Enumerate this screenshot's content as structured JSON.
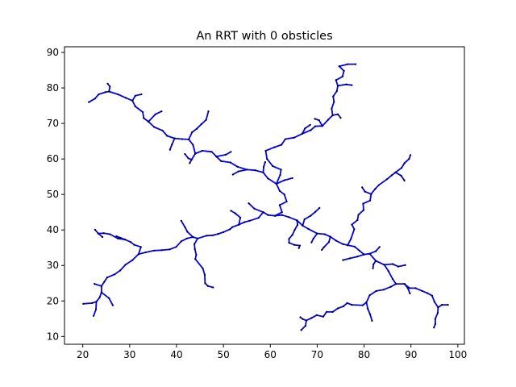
{
  "chart_data": {
    "type": "line",
    "title": "An RRT with 0 obsticles",
    "xlabel": "",
    "ylabel": "",
    "xlim": [
      16.1,
      101.4
    ],
    "ylim": [
      7.8,
      91.6
    ],
    "x_ticks": [
      20,
      30,
      40,
      50,
      60,
      70,
      80,
      90,
      100
    ],
    "y_ticks": [
      10,
      20,
      30,
      40,
      50,
      60,
      70,
      80,
      90
    ],
    "grid": false,
    "legend": "none",
    "edge_color": "#0000ff",
    "node_color": "#000000",
    "branches": [
      [
        [
          61,
          44
        ],
        [
          62.5,
          45
        ],
        [
          62,
          47
        ],
        [
          63.5,
          48
        ],
        [
          63,
          50
        ],
        [
          62,
          51
        ],
        [
          61.3,
          53
        ]
      ],
      [
        [
          61.3,
          53
        ],
        [
          63,
          54
        ],
        [
          64.7,
          54.6
        ]
      ],
      [
        [
          61.3,
          53
        ],
        [
          59.5,
          54.5
        ],
        [
          58.5,
          56.2
        ],
        [
          56.8,
          56.8
        ],
        [
          55,
          57
        ],
        [
          53,
          57.8
        ],
        [
          51.5,
          59
        ],
        [
          49.5,
          59.4
        ],
        [
          48.5,
          60.7
        ]
      ],
      [
        [
          48.5,
          60.7
        ],
        [
          50.5,
          61.2
        ],
        [
          51.6,
          62
        ]
      ],
      [
        [
          48.5,
          60.7
        ],
        [
          47.5,
          62
        ],
        [
          45.5,
          62.3
        ],
        [
          44,
          61.5
        ],
        [
          43.2,
          59.8
        ],
        [
          42.8,
          58.8
        ]
      ],
      [
        [
          44,
          61.5
        ],
        [
          43.5,
          64
        ],
        [
          42.6,
          65.5
        ],
        [
          41.2,
          65.6
        ],
        [
          39.6,
          65.8
        ],
        [
          38,
          66.5
        ],
        [
          37,
          68
        ],
        [
          35.2,
          69
        ],
        [
          34,
          70.5
        ],
        [
          33,
          71.5
        ],
        [
          32.8,
          73.2
        ],
        [
          31.2,
          74.8
        ],
        [
          30.6,
          76.4
        ],
        [
          29.2,
          77.2
        ],
        [
          27.5,
          78.2
        ],
        [
          25.6,
          79
        ],
        [
          24.8,
          78.8
        ],
        [
          23.4,
          78.2
        ],
        [
          22.6,
          77
        ],
        [
          21.3,
          76
        ]
      ],
      [
        [
          43.2,
          59.8
        ],
        [
          42.5,
          60.2
        ],
        [
          41.8,
          61.4
        ]
      ],
      [
        [
          42.6,
          65.5
        ],
        [
          43.3,
          67.5
        ],
        [
          44.3,
          68.5
        ],
        [
          45.3,
          69.8
        ],
        [
          46.3,
          71
        ],
        [
          46.8,
          73.4
        ]
      ],
      [
        [
          39.6,
          65.8
        ],
        [
          39,
          64
        ],
        [
          38.6,
          62.6
        ]
      ],
      [
        [
          34,
          70.5
        ],
        [
          35.5,
          72.6
        ],
        [
          36.8,
          73.4
        ]
      ],
      [
        [
          25.6,
          79
        ],
        [
          25.8,
          80.4
        ],
        [
          25.3,
          81.2
        ]
      ],
      [
        [
          30.6,
          76.4
        ],
        [
          31.2,
          77.8
        ],
        [
          32.5,
          78.2
        ]
      ],
      [
        [
          58.5,
          56.2
        ],
        [
          58.6,
          57.8
        ],
        [
          58.9,
          59.1
        ]
      ],
      [
        [
          55,
          57
        ],
        [
          53.2,
          56.5
        ],
        [
          52,
          55.6
        ]
      ],
      [
        [
          61.3,
          53
        ],
        [
          62.1,
          55.5
        ],
        [
          62.3,
          57
        ],
        [
          60.5,
          58
        ],
        [
          59.3,
          60
        ],
        [
          59,
          62.3
        ],
        [
          60.9,
          63.3
        ],
        [
          62.4,
          64
        ],
        [
          63.2,
          65.6
        ],
        [
          65.1,
          66
        ],
        [
          66.8,
          67.1
        ],
        [
          68.6,
          68.1
        ],
        [
          69.6,
          69.2
        ],
        [
          71.1,
          69.3
        ],
        [
          72.3,
          71
        ],
        [
          73.3,
          72.3
        ],
        [
          73.1,
          74.2
        ],
        [
          73.6,
          76.1
        ],
        [
          73.4,
          77.6
        ],
        [
          74.2,
          79.1
        ],
        [
          74.4,
          80.6
        ],
        [
          74,
          82.2
        ],
        [
          75.4,
          83.2
        ],
        [
          75.7,
          84.8
        ],
        [
          74.7,
          86.1
        ],
        [
          76.5,
          86.7
        ],
        [
          78.2,
          86.7
        ]
      ],
      [
        [
          74.4,
          80.6
        ],
        [
          76.2,
          81
        ],
        [
          77.4,
          80.8
        ]
      ],
      [
        [
          71.1,
          69.3
        ],
        [
          70.4,
          70.9
        ],
        [
          69.5,
          71.3
        ]
      ],
      [
        [
          66.8,
          67.1
        ],
        [
          67.4,
          68.6
        ],
        [
          68.5,
          69.6
        ]
      ],
      [
        [
          73.3,
          72.3
        ],
        [
          74.4,
          72.6
        ],
        [
          75,
          71.6
        ]
      ],
      [
        [
          61,
          44
        ],
        [
          59.5,
          44.2
        ],
        [
          58.5,
          45
        ],
        [
          57.5,
          43.4
        ],
        [
          55.6,
          42.6
        ],
        [
          54.5,
          42.2
        ],
        [
          53.3,
          41.5
        ],
        [
          51.9,
          40.8
        ],
        [
          51.4,
          40.2
        ],
        [
          50,
          39.4
        ],
        [
          48.9,
          38.9
        ],
        [
          47.8,
          38.5
        ],
        [
          46.4,
          38.4
        ],
        [
          44.5,
          37.6
        ],
        [
          43.5,
          38
        ],
        [
          42.2,
          37.6
        ],
        [
          41,
          36.8
        ],
        [
          39.9,
          35.2
        ],
        [
          38.5,
          34.5
        ],
        [
          36.8,
          34.3
        ],
        [
          35.2,
          34.2
        ],
        [
          33.4,
          33.7
        ],
        [
          31.9,
          33.2
        ],
        [
          30.6,
          31.5
        ],
        [
          29.1,
          30.2
        ],
        [
          28,
          28.6
        ],
        [
          26.8,
          27.5
        ],
        [
          25.2,
          26.6
        ],
        [
          24.6,
          25.4
        ],
        [
          24,
          24.2
        ],
        [
          24,
          22.4
        ],
        [
          23.6,
          21
        ],
        [
          22.9,
          19.8
        ],
        [
          22,
          19.4
        ],
        [
          20.1,
          19.2
        ]
      ],
      [
        [
          22.9,
          19.8
        ],
        [
          22.8,
          17.6
        ],
        [
          22.3,
          15.8
        ]
      ],
      [
        [
          24,
          24.2
        ],
        [
          22.5,
          24.8
        ]
      ],
      [
        [
          24,
          22.4
        ],
        [
          25.6,
          20.8
        ],
        [
          26.4,
          18.8
        ]
      ],
      [
        [
          31.9,
          33.2
        ],
        [
          32.4,
          35.2
        ],
        [
          31,
          35.8
        ],
        [
          30.2,
          36.6
        ],
        [
          29,
          37.3
        ],
        [
          27.5,
          37.6
        ],
        [
          25.8,
          38.8
        ],
        [
          24.5,
          39.1
        ],
        [
          23.3,
          39
        ],
        [
          22.6,
          40.1
        ]
      ],
      [
        [
          23.3,
          39
        ],
        [
          24.2,
          38
        ]
      ],
      [
        [
          29,
          37.3
        ],
        [
          28,
          37.8
        ],
        [
          27.2,
          38.2
        ]
      ],
      [
        [
          43.5,
          38
        ],
        [
          42.3,
          39.5
        ],
        [
          41.8,
          40.8
        ],
        [
          41,
          42.6
        ]
      ],
      [
        [
          44.5,
          37.6
        ],
        [
          43.8,
          36
        ],
        [
          43.9,
          34.6
        ],
        [
          44.2,
          33
        ],
        [
          44,
          31.8
        ],
        [
          45.6,
          29.2
        ],
        [
          46,
          27.4
        ],
        [
          46.1,
          25
        ],
        [
          46.7,
          24.2
        ],
        [
          47.8,
          23.8
        ]
      ],
      [
        [
          58.5,
          45
        ],
        [
          56.6,
          46
        ],
        [
          55.4,
          47.5
        ]
      ],
      [
        [
          53.3,
          41.5
        ],
        [
          53.6,
          43.5
        ],
        [
          52.5,
          44.7
        ],
        [
          51.6,
          45.4
        ]
      ],
      [
        [
          61,
          44
        ],
        [
          62.5,
          44.2
        ],
        [
          64,
          43.6
        ],
        [
          65.7,
          42.7
        ],
        [
          66.9,
          41.2
        ],
        [
          68.1,
          40.3
        ],
        [
          70,
          39
        ],
        [
          71.6,
          38.8
        ],
        [
          72.8,
          38.1
        ],
        [
          74,
          37
        ],
        [
          75.5,
          36
        ],
        [
          76.5,
          35.7
        ],
        [
          78,
          35.3
        ],
        [
          79,
          34.2
        ],
        [
          80,
          33.1
        ],
        [
          81.2,
          33.3
        ],
        [
          82.5,
          31.3
        ],
        [
          84.3,
          30.2
        ],
        [
          86.1,
          30.4
        ],
        [
          87.3,
          29.7
        ],
        [
          88.8,
          30.1
        ]
      ],
      [
        [
          65.7,
          42.7
        ],
        [
          65.8,
          41.4
        ],
        [
          65.2,
          40
        ],
        [
          64.7,
          38.6
        ],
        [
          64,
          37.5
        ],
        [
          64,
          36.4
        ],
        [
          65.1,
          35.8
        ],
        [
          66.3,
          35.6
        ],
        [
          66.1,
          34.9
        ]
      ],
      [
        [
          66.9,
          41.2
        ],
        [
          67.3,
          43
        ],
        [
          68.6,
          44
        ],
        [
          69.6,
          45.1
        ],
        [
          70.5,
          46.2
        ]
      ],
      [
        [
          70,
          39
        ],
        [
          69.2,
          37.6
        ],
        [
          68.8,
          36.5
        ]
      ],
      [
        [
          72.8,
          38.1
        ],
        [
          72.5,
          36.6
        ],
        [
          71.4,
          35.1
        ],
        [
          71,
          34.4
        ]
      ],
      [
        [
          76.5,
          35.7
        ],
        [
          77.2,
          37.5
        ],
        [
          77.9,
          40.2
        ],
        [
          77.4,
          41.5
        ],
        [
          78.6,
          42.8
        ],
        [
          78.8,
          44.3
        ],
        [
          79.9,
          45.6
        ],
        [
          79.8,
          47.4
        ],
        [
          81.3,
          48.3
        ],
        [
          81.5,
          50.1
        ],
        [
          82.4,
          51.6
        ],
        [
          83.2,
          52.7
        ],
        [
          84.9,
          54.3
        ],
        [
          85.9,
          55.4
        ],
        [
          86.7,
          56.2
        ],
        [
          88,
          57.5
        ],
        [
          88.6,
          58.8
        ],
        [
          89.6,
          60
        ],
        [
          89.9,
          61.1
        ]
      ],
      [
        [
          86.7,
          56.2
        ],
        [
          87.9,
          55.3
        ],
        [
          88.6,
          53.9
        ]
      ],
      [
        [
          81.5,
          50.1
        ],
        [
          80.2,
          50.8
        ],
        [
          79.6,
          52
        ]
      ],
      [
        [
          80,
          33.1
        ],
        [
          78.6,
          32.5
        ],
        [
          77,
          32
        ],
        [
          75.5,
          31.5
        ]
      ],
      [
        [
          81.2,
          33.3
        ],
        [
          82.5,
          34
        ],
        [
          83.3,
          35.2
        ]
      ],
      [
        [
          82.5,
          31.3
        ],
        [
          82,
          30.3
        ],
        [
          81.9,
          29.2
        ]
      ],
      [
        [
          84.3,
          30.2
        ],
        [
          85.2,
          28.4
        ],
        [
          86.1,
          26.2
        ],
        [
          86.8,
          24.8
        ],
        [
          88.6,
          24.8
        ],
        [
          89.7,
          23.6
        ],
        [
          91,
          23.6
        ],
        [
          92.4,
          22.8
        ],
        [
          93.5,
          22.2
        ],
        [
          94.5,
          21.5
        ],
        [
          95,
          19.8
        ],
        [
          95.8,
          18.2
        ],
        [
          96.6,
          18.9
        ],
        [
          97.9,
          18.9
        ]
      ],
      [
        [
          95.8,
          18.2
        ],
        [
          95.7,
          16.6
        ],
        [
          95.2,
          15
        ],
        [
          95.2,
          13.5
        ],
        [
          94.9,
          12.5
        ]
      ],
      [
        [
          86.8,
          24.8
        ],
        [
          85.7,
          24
        ],
        [
          84.2,
          23.2
        ],
        [
          82.6,
          22.8
        ],
        [
          81.2,
          21.6
        ],
        [
          80.5,
          19.6
        ],
        [
          79.7,
          18.8
        ],
        [
          77.4,
          18.9
        ],
        [
          76.4,
          19.4
        ],
        [
          75.6,
          18.5
        ],
        [
          74.4,
          17.9
        ],
        [
          73.3,
          16.9
        ],
        [
          72,
          16.9
        ],
        [
          71.3,
          15.6
        ],
        [
          69.9,
          16
        ],
        [
          68.8,
          15.2
        ],
        [
          67.7,
          14.5
        ],
        [
          67.5,
          13
        ],
        [
          66.6,
          11.8
        ]
      ],
      [
        [
          80.5,
          19.6
        ],
        [
          80.8,
          17.8
        ],
        [
          81.3,
          16.2
        ],
        [
          81.7,
          14.4
        ]
      ],
      [
        [
          67.7,
          14.5
        ],
        [
          66.9,
          14.9
        ],
        [
          66.4,
          15.4
        ]
      ],
      [
        [
          88.6,
          24.8
        ],
        [
          89.3,
          23.7
        ],
        [
          89.8,
          22.1
        ]
      ]
    ]
  }
}
